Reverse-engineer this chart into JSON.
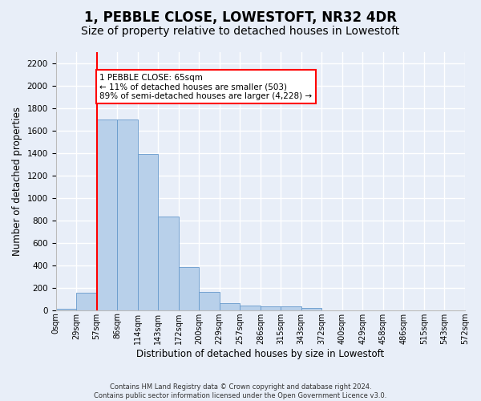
{
  "title": "1, PEBBLE CLOSE, LOWESTOFT, NR32 4DR",
  "subtitle": "Size of property relative to detached houses in Lowestoft",
  "xlabel": "Distribution of detached houses by size in Lowestoft",
  "ylabel": "Number of detached properties",
  "bar_values": [
    15,
    155,
    1700,
    1700,
    1390,
    835,
    385,
    165,
    65,
    38,
    30,
    30,
    18,
    0,
    0,
    0,
    0,
    0,
    0,
    0
  ],
  "bar_labels": [
    "0sqm",
    "29sqm",
    "57sqm",
    "86sqm",
    "114sqm",
    "143sqm",
    "172sqm",
    "200sqm",
    "229sqm",
    "257sqm",
    "286sqm",
    "315sqm",
    "343sqm",
    "372sqm",
    "400sqm",
    "429sqm",
    "458sqm",
    "486sqm",
    "515sqm",
    "543sqm",
    "572sqm"
  ],
  "bar_color": "#b8d0ea",
  "bar_edge_color": "#6699cc",
  "ylim": [
    0,
    2300
  ],
  "yticks": [
    0,
    200,
    400,
    600,
    800,
    1000,
    1200,
    1400,
    1600,
    1800,
    2000,
    2200
  ],
  "vline_color": "red",
  "annotation_text": "1 PEBBLE CLOSE: 65sqm\n← 11% of detached houses are smaller (503)\n89% of semi-detached houses are larger (4,228) →",
  "annotation_box_color": "white",
  "annotation_box_edge": "red",
  "footer_text": "Contains HM Land Registry data © Crown copyright and database right 2024.\nContains public sector information licensed under the Open Government Licence v3.0.",
  "bg_color": "#e8eef8",
  "grid_color": "#ffffff",
  "title_fontsize": 12,
  "subtitle_fontsize": 10,
  "axis_label_fontsize": 8.5,
  "tick_fontsize": 7.5
}
